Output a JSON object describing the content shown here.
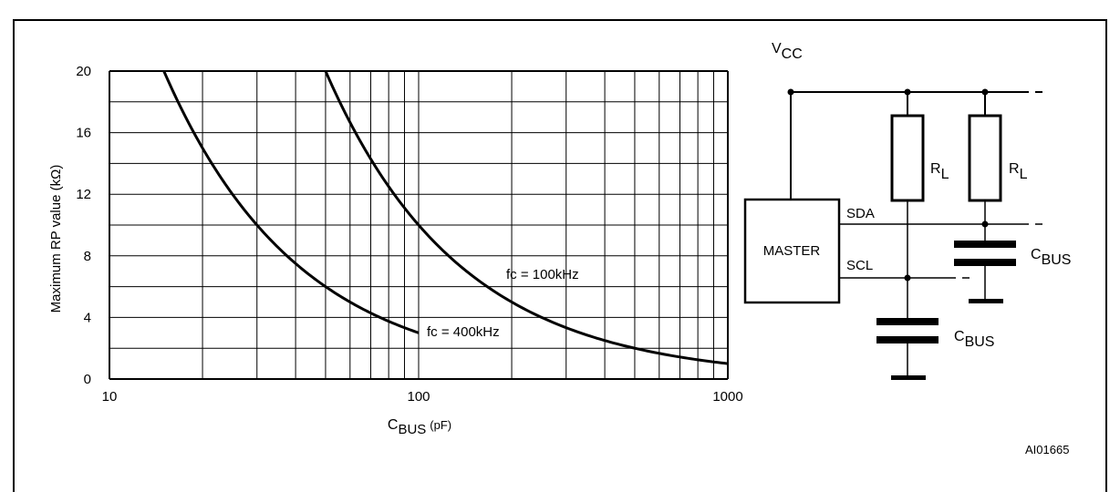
{
  "figure": {
    "id_label": "AI01665",
    "header_fragment": {
      "sub": "L",
      "pre": "",
      "mid": "",
      "bus_sub": "BUS"
    }
  },
  "chart_data": {
    "type": "line",
    "xscale": "log",
    "xlim": [
      10,
      1000
    ],
    "ylim": [
      0,
      20
    ],
    "grid": true,
    "xlabel": {
      "main": "C",
      "sub": "BUS",
      "unit": "(pF)"
    },
    "ylabel": "Maximum RP value (kΩ)",
    "xticks": [
      10,
      100,
      1000
    ],
    "xtick_labels": [
      "10",
      "100",
      "1000"
    ],
    "yticks": [
      0,
      4,
      8,
      12,
      16,
      20
    ],
    "ytick_labels": [
      "0",
      "4",
      "8",
      "12",
      "16",
      "20"
    ],
    "series": [
      {
        "name": "fc = 400kHz",
        "x": [
          15,
          20,
          25,
          30,
          40,
          50,
          60,
          70,
          80,
          90,
          100
        ],
        "y": [
          20,
          15,
          12,
          10,
          7.5,
          6,
          5,
          4.3,
          3.75,
          3.33,
          3.0
        ]
      },
      {
        "name": "fc = 100kHz",
        "x": [
          50,
          60,
          70,
          80,
          100,
          150,
          200,
          300,
          400,
          500,
          700,
          1000
        ],
        "y": [
          20,
          16.7,
          14.3,
          12.5,
          10,
          6.67,
          5,
          3.33,
          2.5,
          2.0,
          1.43,
          1.0
        ]
      }
    ]
  },
  "schematic": {
    "vcc": {
      "main": "V",
      "sub": "CC"
    },
    "master": "MASTER",
    "sda": "SDA",
    "scl": "SCL",
    "resistor_label": {
      "main": "R",
      "sub": "L"
    },
    "cbus_label": {
      "main": "C",
      "sub": "BUS"
    }
  }
}
